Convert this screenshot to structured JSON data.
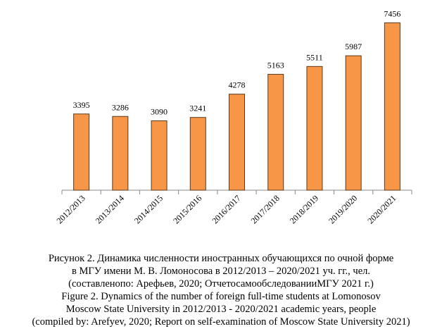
{
  "chart_data": {
    "type": "bar",
    "categories": [
      "2012/2013",
      "2013/2014",
      "2014/2015",
      "2015/2016",
      "2016/2017",
      "2017/2018",
      "2018/2019",
      "2019/2020",
      "2020/2021"
    ],
    "values": [
      3395,
      3286,
      3090,
      3241,
      4278,
      5163,
      5511,
      5987,
      7456
    ],
    "color": "#f79646",
    "ylim": [
      0,
      8000
    ],
    "caption": [
      "Рисунок 2. Динамика численности иностранных обучающихся по очной форме",
      "в МГУ имени М. В. Ломоносова в 2012/2013 – 2020/2021 уч. гг., чел.",
      "(составленопо: Арефьев, 2020; ОтчетосамообследованииМГУ 2021 г.)",
      "Figure 2. Dynamics of the number of foreign full-time students at Lomonosov",
      "Moscow State University in 2012/2013 - 2020/2021 academic years, people",
      "(compiled by: Arefyev, 2020; Report on self-examination of Moscow State University 2021)"
    ]
  }
}
